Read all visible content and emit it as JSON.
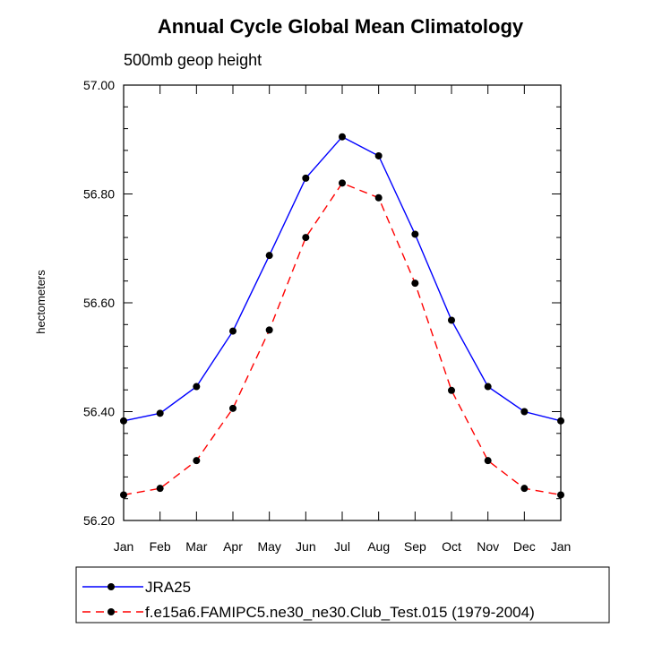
{
  "chart_data": {
    "type": "line",
    "title": "Annual Cycle Global Mean Climatology",
    "subtitle": "500mb geop height",
    "xlabel": "",
    "ylabel": "hectometers",
    "categories": [
      "Jan",
      "Feb",
      "Mar",
      "Apr",
      "May",
      "Jun",
      "Jul",
      "Aug",
      "Sep",
      "Oct",
      "Nov",
      "Dec",
      "Jan"
    ],
    "ylim": [
      56.2,
      57.0
    ],
    "yticks": [
      "56.20",
      "56.40",
      "56.60",
      "56.80",
      "57.00"
    ],
    "grid": false,
    "legend_position": "bottom",
    "series": [
      {
        "name": "JRA25",
        "color": "#0000ff",
        "line_style": "solid",
        "marker": "filled-circle",
        "values": [
          56.383,
          56.397,
          56.446,
          56.548,
          56.687,
          56.829,
          56.905,
          56.87,
          56.726,
          56.568,
          56.446,
          56.4,
          56.383
        ]
      },
      {
        "name": "f.e15a6.FAMIPC5.ne30_ne30.Club_Test.015 (1979-2004)",
        "color": "#ff0000",
        "line_style": "dashed",
        "marker": "filled-circle",
        "values": [
          56.247,
          56.259,
          56.31,
          56.406,
          56.55,
          56.72,
          56.82,
          56.793,
          56.636,
          56.439,
          56.31,
          56.259,
          56.247
        ]
      }
    ]
  }
}
